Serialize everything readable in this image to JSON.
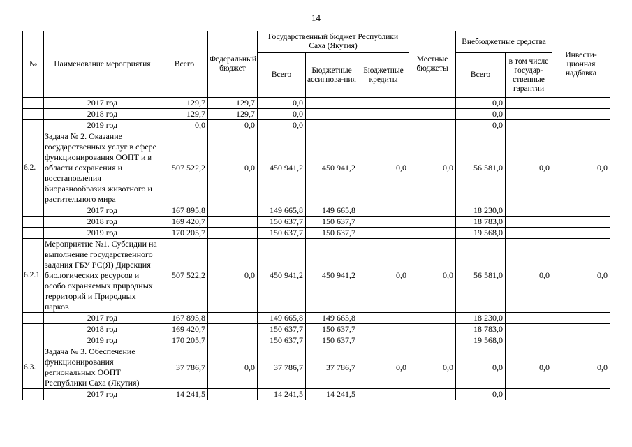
{
  "page": {
    "number": "14"
  },
  "table": {
    "headers": {
      "num": "№",
      "name": "Наименование мероприятия",
      "total": "Всего",
      "federal": "Федеральный бюджет",
      "state_group": "Государственный бюджет Республики Саха (Якутия)",
      "state_total": "Всего",
      "state_assign": "Бюджетные ассигнова-ния",
      "state_credits": "Бюджетные кредиты",
      "local": "Местные бюджеты",
      "extra_group": "Внебюджетные средства",
      "extra_total": "Всего",
      "extra_guarantees": "в том числе государ-ственные гарантии",
      "invest": "Инвести-ционная надбавка"
    },
    "rows": [
      {
        "num": "",
        "type": "year",
        "name": "2017 год",
        "values": [
          "129,7",
          "129,7",
          "0,0",
          "",
          "",
          "",
          "0,0",
          "",
          ""
        ]
      },
      {
        "num": "",
        "type": "year",
        "name": "2018 год",
        "values": [
          "129,7",
          "129,7",
          "0,0",
          "",
          "",
          "",
          "0,0",
          "",
          ""
        ]
      },
      {
        "num": "",
        "type": "year",
        "name": "2019 год",
        "values": [
          "0,0",
          "0,0",
          "0,0",
          "",
          "",
          "",
          "0,0",
          "",
          ""
        ]
      },
      {
        "num": "6.2.",
        "type": "task",
        "name": "Задача № 2. Оказание государственных услуг в сфере функционирования ООПТ и в области сохранения и восстановления биоразнообразия животного и растительного мира",
        "values": [
          "507 522,2",
          "0,0",
          "450 941,2",
          "450 941,2",
          "0,0",
          "0,0",
          "56 581,0",
          "0,0",
          "0,0"
        ]
      },
      {
        "num": "",
        "type": "year",
        "name": "2017 год",
        "values": [
          "167 895,8",
          "",
          "149 665,8",
          "149 665,8",
          "",
          "",
          "18 230,0",
          "",
          ""
        ]
      },
      {
        "num": "",
        "type": "year",
        "name": "2018 год",
        "values": [
          "169 420,7",
          "",
          "150 637,7",
          "150 637,7",
          "",
          "",
          "18 783,0",
          "",
          ""
        ]
      },
      {
        "num": "",
        "type": "year",
        "name": "2019 год",
        "values": [
          "170 205,7",
          "",
          "150 637,7",
          "150 637,7",
          "",
          "",
          "19 568,0",
          "",
          ""
        ]
      },
      {
        "num": "6.2.1.",
        "type": "task",
        "name": "Мероприятие №1. Субсидии на выполнение государственного задания ГБУ РС(Я) Дирекция биологических ресурсов и особо охраняемых природных территорий и Природных парков",
        "values": [
          "507 522,2",
          "0,0",
          "450 941,2",
          "450 941,2",
          "0,0",
          "0,0",
          "56 581,0",
          "0,0",
          "0,0"
        ]
      },
      {
        "num": "",
        "type": "year",
        "name": "2017 год",
        "values": [
          "167 895,8",
          "",
          "149 665,8",
          "149 665,8",
          "",
          "",
          "18 230,0",
          "",
          ""
        ]
      },
      {
        "num": "",
        "type": "year",
        "name": "2018 год",
        "values": [
          "169 420,7",
          "",
          "150 637,7",
          "150 637,7",
          "",
          "",
          "18 783,0",
          "",
          ""
        ]
      },
      {
        "num": "",
        "type": "year",
        "name": "2019 год",
        "values": [
          "170 205,7",
          "",
          "150 637,7",
          "150 637,7",
          "",
          "",
          "19 568,0",
          "",
          ""
        ]
      },
      {
        "num": "6.3.",
        "type": "task",
        "name": "Задача № 3. Обеспечение функционирования региональных ООПТ Республики Саха (Якутия)",
        "values": [
          "37 786,7",
          "0,0",
          "37 786,7",
          "37 786,7",
          "0,0",
          "0,0",
          "0,0",
          "0,0",
          "0,0"
        ]
      },
      {
        "num": "",
        "type": "year",
        "name": "2017 год",
        "values": [
          "14 241,5",
          "",
          "14 241,5",
          "14 241,5",
          "",
          "",
          "0,0",
          "",
          ""
        ]
      }
    ]
  }
}
